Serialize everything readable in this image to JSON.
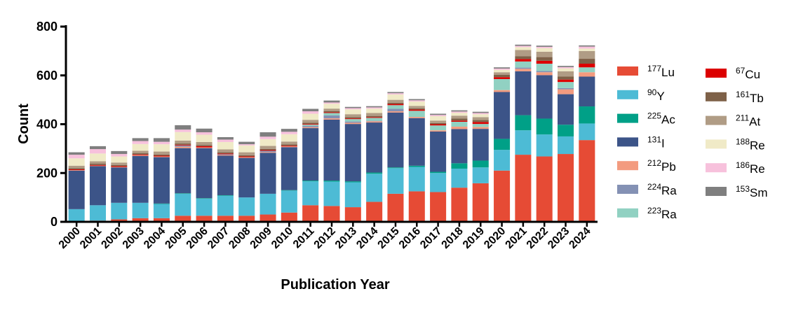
{
  "chart_data": {
    "type": "bar",
    "stacked": true,
    "xlabel": "Publication Year",
    "ylabel": "Count",
    "ylim": [
      0,
      800
    ],
    "yticks": [
      0,
      200,
      400,
      600,
      800
    ],
    "grid": false,
    "legend_position": "right",
    "categories": [
      "2000",
      "2001",
      "2002",
      "2003",
      "2004",
      "2005",
      "2006",
      "2007",
      "2008",
      "2009",
      "2010",
      "2011",
      "2012",
      "2013",
      "2014",
      "2015",
      "2016",
      "2017",
      "2018",
      "2019",
      "2020",
      "2021",
      "2022",
      "2023",
      "2024"
    ],
    "series": [
      {
        "name": "177Lu",
        "sup": "177",
        "base": "Lu",
        "color": "#E64B35",
        "values": [
          2,
          5,
          10,
          15,
          15,
          25,
          25,
          25,
          25,
          30,
          38,
          68,
          65,
          60,
          82,
          115,
          125,
          122,
          140,
          158,
          210,
          275,
          268,
          278,
          335
        ]
      },
      {
        "name": "90Y",
        "sup": "90",
        "base": "Y",
        "color": "#4DBBD5",
        "values": [
          50,
          63,
          68,
          63,
          58,
          90,
          70,
          82,
          75,
          85,
          90,
          98,
          100,
          102,
          115,
          105,
          100,
          78,
          78,
          65,
          85,
          100,
          90,
          72,
          68
        ]
      },
      {
        "name": "225Ac",
        "sup": "225",
        "base": "Ac",
        "color": "#00A087",
        "values": [
          0,
          0,
          0,
          0,
          2,
          2,
          2,
          2,
          0,
          0,
          2,
          3,
          4,
          4,
          5,
          3,
          5,
          5,
          22,
          28,
          45,
          62,
          65,
          48,
          70
        ]
      },
      {
        "name": "131I",
        "sup": "131",
        "base": "I",
        "color": "#3C5488",
        "values": [
          158,
          160,
          145,
          192,
          190,
          185,
          205,
          162,
          162,
          168,
          176,
          215,
          250,
          235,
          205,
          225,
          195,
          165,
          140,
          130,
          192,
          180,
          178,
          125,
          122
        ]
      },
      {
        "name": "212Pb",
        "sup": "212",
        "base": "Pb",
        "color": "#F39B7F",
        "values": [
          2,
          2,
          2,
          3,
          3,
          6,
          3,
          3,
          3,
          3,
          3,
          4,
          5,
          5,
          5,
          5,
          5,
          5,
          10,
          8,
          8,
          10,
          12,
          20,
          18
        ]
      },
      {
        "name": "224Ra",
        "sup": "224",
        "base": "Ra",
        "color": "#8491B4",
        "values": [
          0,
          0,
          0,
          0,
          0,
          5,
          0,
          3,
          0,
          5,
          0,
          5,
          12,
          5,
          2,
          10,
          0,
          0,
          0,
          0,
          0,
          5,
          5,
          5,
          0
        ]
      },
      {
        "name": "223Ra",
        "sup": "223",
        "base": "Ra",
        "color": "#91D1C2",
        "values": [
          0,
          0,
          0,
          0,
          0,
          0,
          0,
          0,
          0,
          0,
          0,
          5,
          10,
          10,
          12,
          15,
          25,
          20,
          20,
          12,
          45,
          25,
          30,
          25,
          20
        ]
      },
      {
        "name": "67Cu",
        "sup": "67",
        "base": "Cu",
        "color": "#DC0000",
        "values": [
          3,
          3,
          3,
          3,
          3,
          3,
          5,
          3,
          3,
          3,
          3,
          3,
          3,
          3,
          3,
          5,
          5,
          5,
          5,
          8,
          8,
          10,
          12,
          10,
          15
        ]
      },
      {
        "name": "161Tb",
        "sup": "161",
        "base": "Tb",
        "color": "#7E6148",
        "values": [
          5,
          5,
          5,
          5,
          5,
          5,
          5,
          5,
          5,
          5,
          5,
          5,
          5,
          5,
          5,
          5,
          5,
          5,
          8,
          8,
          10,
          12,
          15,
          12,
          20
        ]
      },
      {
        "name": "211At",
        "sup": "211",
        "base": "At",
        "color": "#B09C85",
        "values": [
          10,
          10,
          10,
          10,
          12,
          12,
          12,
          12,
          12,
          12,
          12,
          12,
          10,
          12,
          12,
          12,
          10,
          10,
          12,
          12,
          10,
          25,
          22,
          22,
          32
        ]
      },
      {
        "name": "188Re",
        "sup": "188",
        "base": "Re",
        "color": "#F0EAC7",
        "values": [
          30,
          32,
          25,
          28,
          30,
          35,
          30,
          30,
          28,
          28,
          30,
          25,
          20,
          20,
          18,
          22,
          18,
          18,
          12,
          12,
          10,
          12,
          15,
          12,
          10
        ]
      },
      {
        "name": "186Re",
        "sup": "186",
        "base": "Re",
        "color": "#F7C1DC",
        "values": [
          15,
          18,
          10,
          12,
          10,
          10,
          10,
          10,
          5,
          10,
          10,
          10,
          5,
          5,
          5,
          5,
          5,
          5,
          5,
          5,
          5,
          5,
          5,
          5,
          8
        ]
      },
      {
        "name": "153Sm",
        "sup": "153",
        "base": "Sm",
        "color": "#7F7F7F",
        "values": [
          10,
          12,
          12,
          12,
          15,
          18,
          15,
          10,
          10,
          18,
          12,
          10,
          8,
          5,
          5,
          5,
          5,
          5,
          5,
          5,
          5,
          5,
          5,
          5,
          5
        ]
      }
    ]
  }
}
